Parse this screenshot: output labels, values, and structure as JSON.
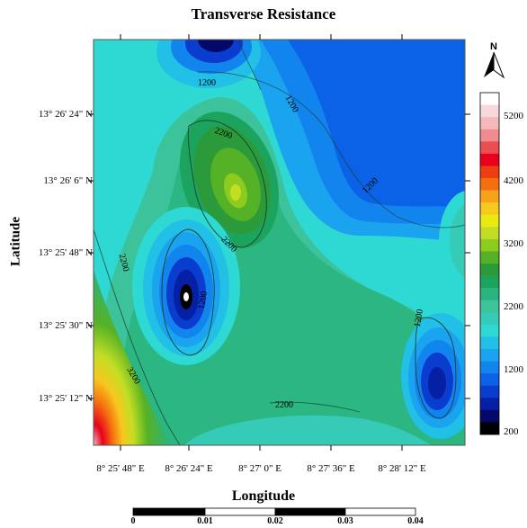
{
  "title": "Transverse Resistance",
  "axes": {
    "x_label": "Longitude",
    "y_label": "Latitude",
    "x_ticks": [
      "8° 25' 48\" E",
      "8° 26' 24\" E",
      "8° 27' 0\" E",
      "8° 27' 36\" E",
      "8° 28' 12\" E"
    ],
    "y_ticks": [
      "13° 26' 24\" N",
      "13° 26' 6\" N",
      "13° 25' 48\" N",
      "13° 25' 30\" N",
      "13° 25' 12\" N"
    ]
  },
  "colorbar": {
    "ticks": [
      "5200",
      "4200",
      "3200",
      "2200",
      "1200",
      "200"
    ],
    "colors": [
      "#ffffff",
      "#f7d9db",
      "#f5b9bb",
      "#f08c90",
      "#ea4d52",
      "#e8001c",
      "#ee3d10",
      "#f56f0f",
      "#f8a21c",
      "#f7c81e",
      "#eaea12",
      "#c2de24",
      "#8dcc1f",
      "#55b226",
      "#2a9a3a",
      "#1ca45e",
      "#28b47e",
      "#3cc39c",
      "#35cbb6",
      "#2ed8d3",
      "#22bfe7",
      "#1aa3ee",
      "#1284ee",
      "#0b62e6",
      "#0a3ccd",
      "#0520a4",
      "#03096a",
      "#000000"
    ]
  },
  "contour_labels": [
    "1200",
    "1200",
    "1200",
    "2200",
    "2200",
    "2200",
    "1200",
    "1200",
    "3200",
    "2200"
  ],
  "scale_bar": {
    "ticks": [
      "0",
      "0.01",
      "0.02",
      "0.03",
      "0.04"
    ]
  },
  "north": {
    "label": "N"
  }
}
